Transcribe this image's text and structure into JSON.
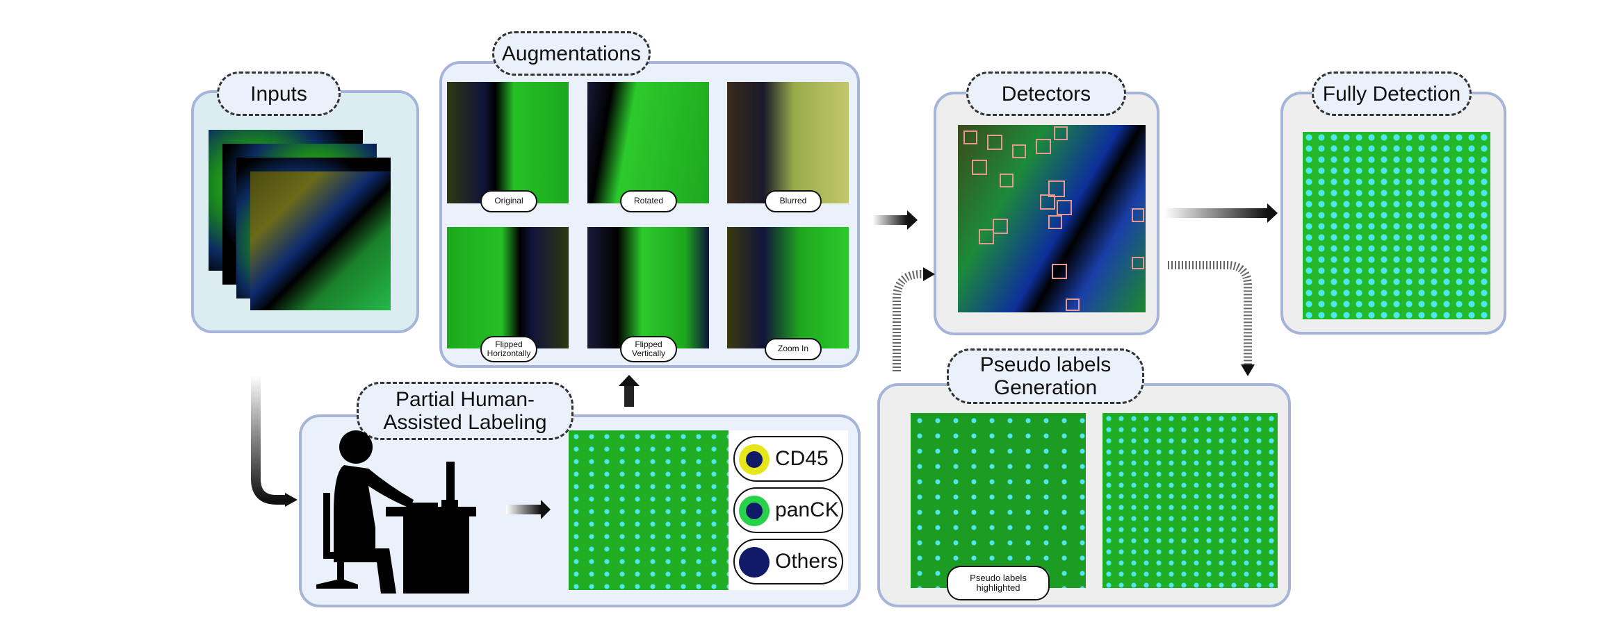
{
  "stages": {
    "inputs": "Inputs",
    "augmentations": "Augmentations",
    "detectors": "Detectors",
    "fully_detection": "Fully Detection",
    "partial_labeling": "Partial Human-\nAssisted Labeling",
    "pseudo_labels": "Pseudo labels\nGeneration"
  },
  "augmentation_labels": {
    "original": "Original",
    "rotated": "Rotated",
    "blurred": "Blurred",
    "flipped_h": "Flipped\nHorizontally",
    "flipped_v": "Flipped\nVertically",
    "zoom_in": "Zoom In"
  },
  "legend": [
    {
      "label": "CD45",
      "ring": "#e6e61a"
    },
    {
      "label": "panCK",
      "ring": "#27d24a"
    },
    {
      "label": "Others",
      "ring": "#101a66"
    }
  ],
  "pseudo_caption": "Pseudo labels\nhighlighted",
  "colors": {
    "panel_border": "#a5b4d8",
    "tissue_green": "#22c21f",
    "nuclei_blue": "#1a2fb5",
    "label_cyan": "#3fe6e6",
    "box_pink": "#e69a8f"
  }
}
